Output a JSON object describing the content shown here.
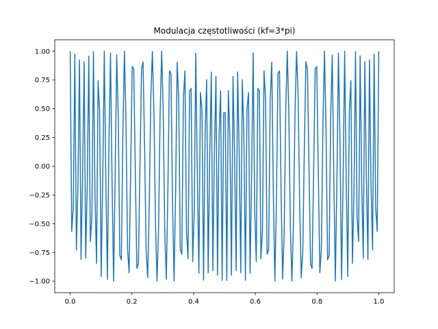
{
  "chart_data": {
    "type": "line",
    "title": "Modulacja częstotliwości (kf=3*pi)",
    "xlabel": "",
    "ylabel": "",
    "xlim": [
      -0.05,
      1.05
    ],
    "ylim": [
      -1.1,
      1.1
    ],
    "grid": false,
    "x_ticks": [
      0.0,
      0.2,
      0.4,
      0.6,
      0.8,
      1.0
    ],
    "x_tick_labels": [
      "0.0",
      "0.2",
      "0.4",
      "0.6",
      "0.8",
      "1.0"
    ],
    "y_ticks": [
      -1.0,
      -0.75,
      -0.5,
      -0.25,
      0.0,
      0.25,
      0.5,
      0.75,
      1.0
    ],
    "y_tick_labels": [
      "−1.00",
      "−0.75",
      "−0.50",
      "−0.25",
      "0.00",
      "0.25",
      "0.50",
      "0.75",
      "1.00"
    ],
    "series": [
      {
        "color": "#1f77b4",
        "signal": {
          "formula": "cos(2*pi*fc*t + kf*sin(2*pi*fm*t))",
          "fc": 50,
          "kf": 9.42477796,
          "fm": 2,
          "t_start": 0.0,
          "t_end": 1.0,
          "n_samples": 200
        }
      }
    ]
  }
}
